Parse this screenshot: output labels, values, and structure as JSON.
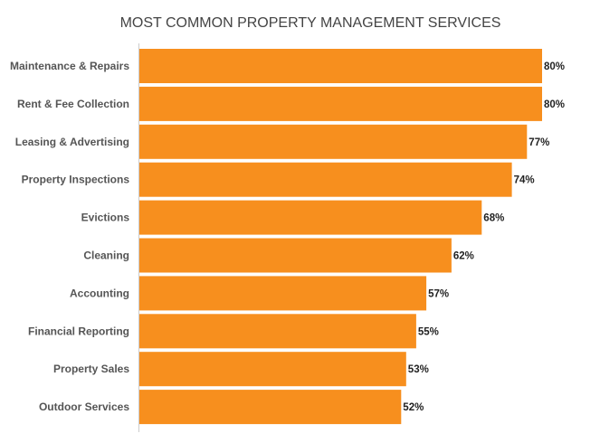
{
  "chart_data": {
    "type": "bar",
    "orientation": "horizontal",
    "title": "MOST COMMON PROPERTY MANAGEMENT SERVICES",
    "xlabel": "",
    "ylabel": "",
    "categories": [
      "Maintenance & Repairs",
      "Rent & Fee Collection",
      "Leasing & Advertising",
      "Property Inspections",
      "Evictions",
      "Cleaning",
      "Accounting",
      "Financial Reporting",
      "Property Sales",
      "Outdoor Services"
    ],
    "values": [
      80,
      80,
      77,
      74,
      68,
      62,
      57,
      55,
      53,
      52
    ],
    "value_labels": [
      "80%",
      "80%",
      "77%",
      "74%",
      "68%",
      "62%",
      "57%",
      "55%",
      "53%",
      "52%"
    ],
    "unit": "%",
    "xlim": [
      0,
      80
    ],
    "grid": false,
    "legend": "none",
    "bar_color": "#f78f1e"
  }
}
